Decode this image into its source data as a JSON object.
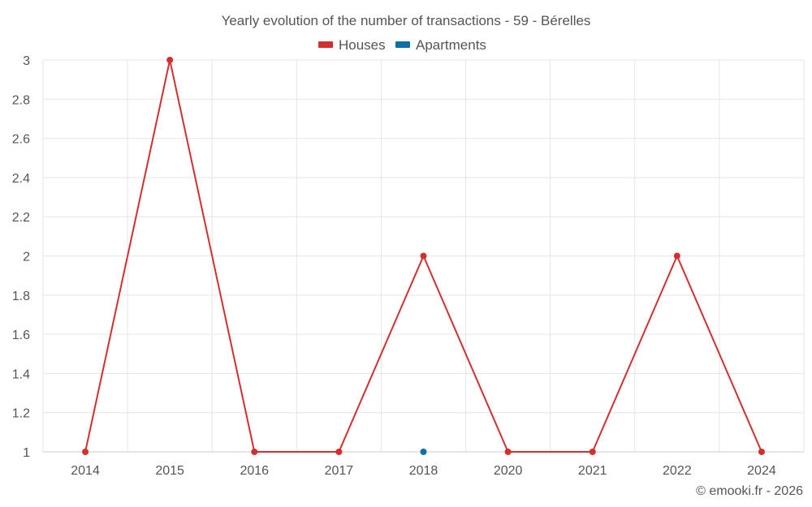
{
  "chart_data": {
    "type": "line",
    "title": "Yearly evolution of the number of transactions - 59 - Bérelles",
    "categories": [
      "2014",
      "2015",
      "2016",
      "2017",
      "2018",
      "2020",
      "2021",
      "2022",
      "2024"
    ],
    "series": [
      {
        "name": "Houses",
        "color": "#d32f2f",
        "values": [
          1,
          3,
          1,
          1,
          2,
          1,
          1,
          2,
          1
        ]
      },
      {
        "name": "Apartments",
        "color": "#0d6fa6",
        "values": [
          null,
          null,
          null,
          null,
          1,
          null,
          null,
          null,
          null
        ]
      }
    ],
    "yticks": [
      "1",
      "1.2",
      "1.4",
      "1.6",
      "1.8",
      "2",
      "2.2",
      "2.4",
      "2.6",
      "2.8",
      "3"
    ],
    "ylim": [
      1,
      3
    ],
    "grid": true,
    "legend_position": "top-center"
  },
  "credit": "© emooki.fr - 2026"
}
